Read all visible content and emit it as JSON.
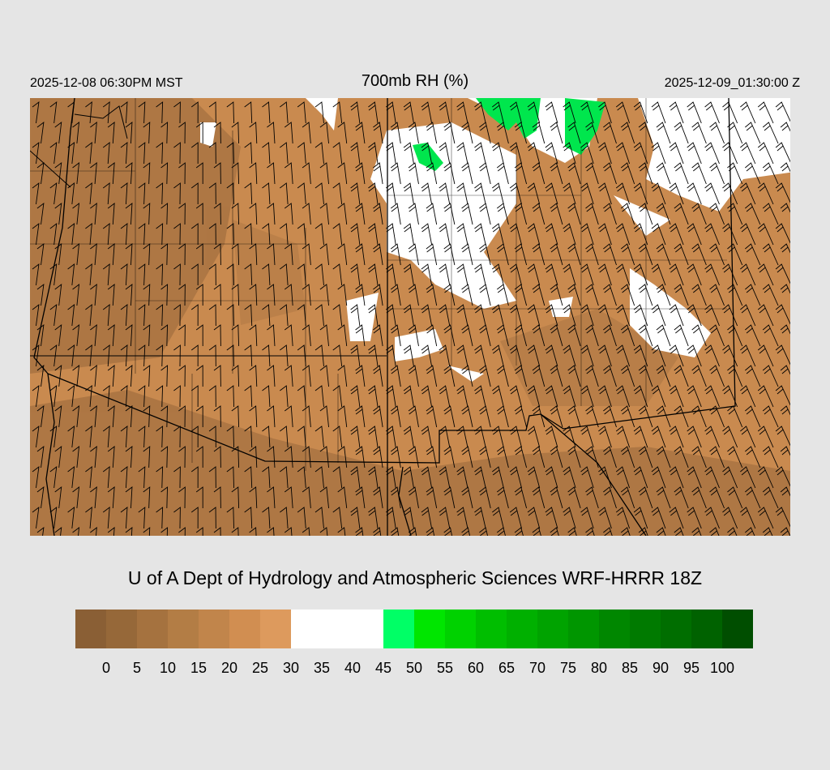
{
  "header": {
    "local_time": "2025-12-08 06:30PM MST",
    "title": "700mb RH (%)",
    "valid_time": "2025-12-09_01:30:00 Z"
  },
  "credit": "U of A Dept of Hydrology and Atmospheric Sciences WRF-HRRR 18Z",
  "colorbar": {
    "labels": [
      "0",
      "5",
      "10",
      "15",
      "20",
      "25",
      "30",
      "35",
      "40",
      "45",
      "50",
      "55",
      "60",
      "65",
      "70",
      "75",
      "80",
      "85",
      "90",
      "95",
      "100"
    ],
    "colors": [
      "#8a5f35",
      "#966839",
      "#a5723f",
      "#b37d45",
      "#c1854b",
      "#d18e51",
      "#dd9a5d",
      "#ffffff",
      "#ffffff",
      "#ffffff",
      "#00ff66",
      "#00e600",
      "#00d200",
      "#00be00",
      "#00b000",
      "#00a300",
      "#009600",
      "#008700",
      "#007a00",
      "#006e00",
      "#006200",
      "#004e00"
    ]
  },
  "map": {
    "dry_color": "#c98a4f",
    "very_dry_color": "#9e6c3c",
    "moist_color": "#ffffff",
    "wet_color": "#00e64d",
    "wind_barbs": true
  }
}
